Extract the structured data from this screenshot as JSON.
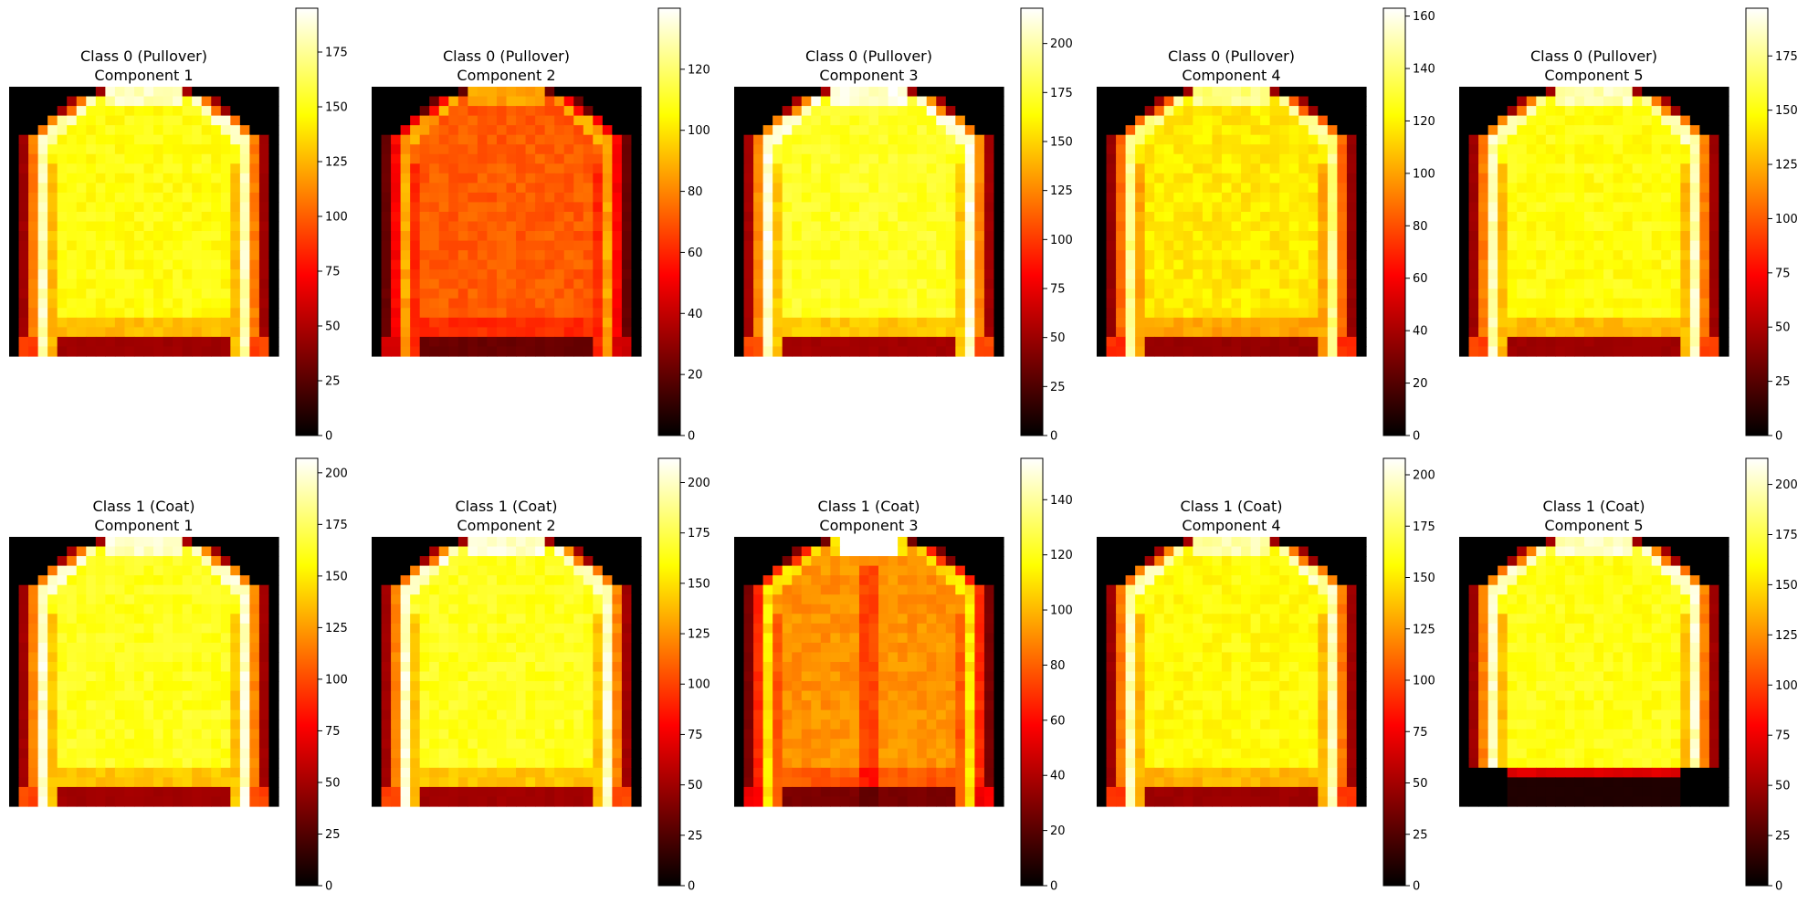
{
  "figure": {
    "colormap": "hot",
    "panels": [
      {
        "title_line1": "Class 0 (Pullover)",
        "title_line2": "Component 1",
        "vmax": 195,
        "ticks": [
          0,
          25,
          50,
          75,
          100,
          125,
          150,
          175
        ],
        "garment": "pullover",
        "intensity": 0.93
      },
      {
        "title_line1": "Class 0 (Pullover)",
        "title_line2": "Component 2",
        "vmax": 140,
        "ticks": [
          0,
          20,
          40,
          60,
          80,
          100,
          120
        ],
        "garment": "pullover",
        "intensity": 0.62
      },
      {
        "title_line1": "Class 0 (Pullover)",
        "title_line2": "Component 3",
        "vmax": 218,
        "ticks": [
          0,
          25,
          50,
          75,
          100,
          125,
          150,
          175,
          200
        ],
        "garment": "pullover",
        "intensity": 0.96
      },
      {
        "title_line1": "Class 0 (Pullover)",
        "title_line2": "Component 4",
        "vmax": 163,
        "ticks": [
          0,
          20,
          40,
          60,
          80,
          100,
          120,
          140,
          160
        ],
        "garment": "pullover",
        "intensity": 0.88
      },
      {
        "title_line1": "Class 0 (Pullover)",
        "title_line2": "Component 5",
        "vmax": 197,
        "ticks": [
          0,
          25,
          50,
          75,
          100,
          125,
          150,
          175
        ],
        "garment": "pullover",
        "intensity": 0.93
      },
      {
        "title_line1": "Class 1 (Coat)",
        "title_line2": "Component 1",
        "vmax": 207,
        "ticks": [
          0,
          25,
          50,
          75,
          100,
          125,
          150,
          175,
          200
        ],
        "garment": "coat",
        "intensity": 0.95
      },
      {
        "title_line1": "Class 1 (Coat)",
        "title_line2": "Component 2",
        "vmax": 212,
        "ticks": [
          0,
          25,
          50,
          75,
          100,
          125,
          150,
          175,
          200
        ],
        "garment": "coat",
        "intensity": 0.95
      },
      {
        "title_line1": "Class 1 (Coat)",
        "title_line2": "Component 3",
        "vmax": 155,
        "ticks": [
          0,
          20,
          40,
          60,
          80,
          100,
          120,
          140
        ],
        "garment": "coat-open",
        "intensity": 0.72
      },
      {
        "title_line1": "Class 1 (Coat)",
        "title_line2": "Component 4",
        "vmax": 208,
        "ticks": [
          0,
          25,
          50,
          75,
          100,
          125,
          150,
          175,
          200
        ],
        "garment": "coat",
        "intensity": 0.92
      },
      {
        "title_line1": "Class 1 (Coat)",
        "title_line2": "Component 5",
        "vmax": 213,
        "ticks": [
          0,
          25,
          50,
          75,
          100,
          125,
          150,
          175,
          200
        ],
        "garment": "coat-short",
        "intensity": 0.94
      }
    ]
  },
  "chart_data": {
    "type": "heatmap",
    "grid": [
      28,
      28
    ],
    "series": [
      {
        "name": "Class 0 (Pullover) Component 1",
        "colorbar_range": [
          0,
          195
        ]
      },
      {
        "name": "Class 0 (Pullover) Component 2",
        "colorbar_range": [
          0,
          140
        ]
      },
      {
        "name": "Class 0 (Pullover) Component 3",
        "colorbar_range": [
          0,
          218
        ]
      },
      {
        "name": "Class 0 (Pullover) Component 4",
        "colorbar_range": [
          0,
          163
        ]
      },
      {
        "name": "Class 0 (Pullover) Component 5",
        "colorbar_range": [
          0,
          197
        ]
      },
      {
        "name": "Class 1 (Coat) Component 1",
        "colorbar_range": [
          0,
          207
        ]
      },
      {
        "name": "Class 1 (Coat) Component 2",
        "colorbar_range": [
          0,
          212
        ]
      },
      {
        "name": "Class 1 (Coat) Component 3",
        "colorbar_range": [
          0,
          155
        ]
      },
      {
        "name": "Class 1 (Coat) Component 4",
        "colorbar_range": [
          0,
          208
        ]
      },
      {
        "name": "Class 1 (Coat) Component 5",
        "colorbar_range": [
          0,
          213
        ]
      }
    ]
  }
}
